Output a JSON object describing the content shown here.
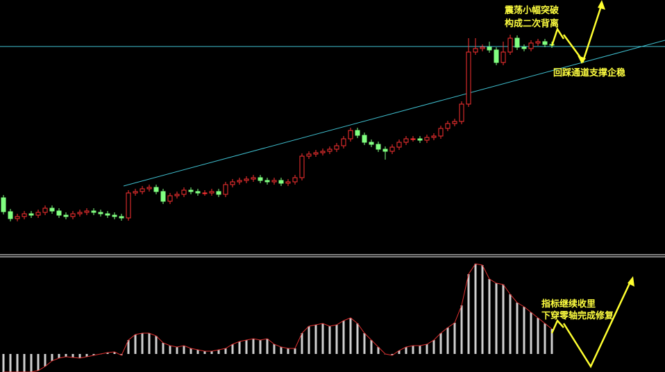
{
  "chart_data": [
    {
      "type": "candlestick",
      "up_color": "#ff3232",
      "down_color": "#80ff80",
      "ylim": [
        35,
        400
      ],
      "annotations": [
        "震荡小幅突破",
        "构成二次背离",
        "回踩通道支撑企稳"
      ],
      "open": [
        115,
        95,
        85,
        88,
        92,
        90,
        94,
        100,
        96,
        90,
        88,
        92,
        94,
        96,
        94,
        92,
        90,
        88,
        86,
        122,
        124,
        128,
        130,
        124,
        110,
        118,
        120,
        126,
        124,
        122,
        122,
        124,
        120,
        134,
        138,
        140,
        142,
        144,
        140,
        138,
        140,
        136,
        138,
        144,
        175,
        178,
        180,
        182,
        185,
        190,
        200,
        212,
        205,
        195,
        192,
        185,
        182,
        188,
        195,
        200,
        200,
        198,
        202,
        204,
        215,
        222,
        225,
        250,
        325,
        330,
        332,
        328,
        310,
        325,
        345,
        332,
        330,
        338,
        340,
        336
      ],
      "high": [
        119,
        99,
        92,
        96,
        96,
        98,
        104,
        104,
        100,
        94,
        96,
        98,
        100,
        100,
        98,
        96,
        94,
        92,
        126,
        128,
        132,
        134,
        134,
        128,
        122,
        124,
        130,
        130,
        128,
        126,
        128,
        128,
        138,
        142,
        144,
        146,
        148,
        148,
        144,
        144,
        144,
        142,
        148,
        179,
        182,
        184,
        186,
        189,
        194,
        204,
        216,
        216,
        209,
        199,
        196,
        189,
        192,
        199,
        204,
        204,
        204,
        206,
        208,
        219,
        226,
        229,
        254,
        345,
        345,
        336,
        340,
        332,
        340,
        350,
        349,
        336,
        342,
        344,
        344,
        340
      ],
      "low": [
        91,
        81,
        81,
        84,
        86,
        86,
        90,
        92,
        86,
        84,
        84,
        88,
        90,
        90,
        88,
        86,
        84,
        82,
        82,
        118,
        120,
        124,
        120,
        106,
        106,
        114,
        116,
        120,
        118,
        118,
        118,
        116,
        116,
        130,
        134,
        136,
        138,
        136,
        134,
        134,
        132,
        132,
        134,
        140,
        171,
        174,
        176,
        178,
        181,
        186,
        196,
        201,
        191,
        188,
        181,
        170,
        178,
        184,
        191,
        196,
        194,
        194,
        198,
        200,
        211,
        218,
        221,
        246,
        321,
        326,
        324,
        306,
        306,
        321,
        328,
        326,
        326,
        334,
        332,
        331
      ],
      "close": [
        95,
        85,
        88,
        92,
        90,
        94,
        100,
        96,
        90,
        88,
        92,
        94,
        96,
        94,
        92,
        90,
        88,
        86,
        122,
        124,
        128,
        130,
        124,
        110,
        118,
        120,
        126,
        124,
        122,
        122,
        124,
        120,
        134,
        138,
        140,
        142,
        144,
        140,
        138,
        140,
        136,
        138,
        144,
        175,
        178,
        180,
        182,
        185,
        190,
        200,
        212,
        205,
        195,
        192,
        185,
        182,
        188,
        195,
        200,
        200,
        198,
        202,
        204,
        215,
        222,
        225,
        250,
        325,
        330,
        332,
        328,
        310,
        325,
        345,
        332,
        330,
        338,
        340,
        336,
        335
      ]
    },
    {
      "type": "bar",
      "color": "#d0d0d0",
      "line_color": "#e03030",
      "ylim": [
        -26,
        138
      ],
      "annotations": [
        "指标继续收里",
        "下穿零轴完成修复"
      ],
      "values": [
        -26,
        -26,
        -26,
        -26,
        -26,
        -24,
        -18,
        -10,
        -6,
        -4,
        -5,
        -6,
        -4,
        -2,
        0,
        2,
        3,
        -2,
        20,
        28,
        30,
        30,
        26,
        16,
        12,
        10,
        12,
        8,
        6,
        4,
        4,
        6,
        8,
        14,
        18,
        20,
        22,
        20,
        22,
        14,
        10,
        8,
        8,
        30,
        40,
        42,
        44,
        40,
        42,
        48,
        52,
        44,
        30,
        20,
        10,
        0,
        -2,
        5,
        10,
        12,
        12,
        14,
        20,
        30,
        38,
        45,
        70,
        115,
        130,
        128,
        108,
        102,
        100,
        86,
        74,
        68,
        60,
        52,
        44,
        36
      ]
    }
  ]
}
